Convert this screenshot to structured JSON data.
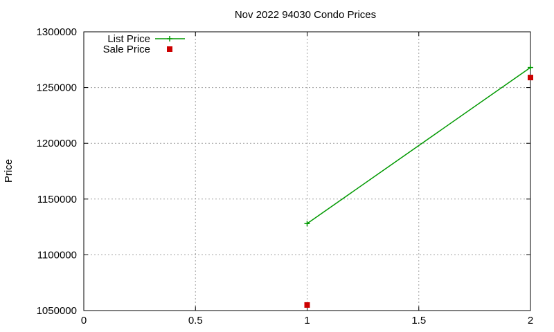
{
  "chart_data": {
    "type": "line",
    "title": "Nov 2022 94030 Condo Prices",
    "xlabel": "",
    "ylabel": "Price",
    "xlim": [
      0,
      2
    ],
    "ylim": [
      1050000,
      1300000
    ],
    "xticks": [
      0,
      0.5,
      1,
      1.5,
      2
    ],
    "xtick_labels": [
      "0",
      "0.5",
      "1",
      "1.5",
      "2"
    ],
    "yticks": [
      1050000,
      1100000,
      1150000,
      1200000,
      1250000,
      1300000
    ],
    "ytick_labels": [
      "1050000",
      "1100000",
      "1150000",
      "1200000",
      "1250000",
      "1300000"
    ],
    "grid": true,
    "legend_position": "top-left",
    "series": [
      {
        "name": "List Price",
        "style": "line+plus",
        "color": "#009900",
        "points": [
          {
            "x": 1,
            "y": 1128000
          },
          {
            "x": 2,
            "y": 1268000
          }
        ]
      },
      {
        "name": "Sale Price",
        "style": "square",
        "color": "#cc0000",
        "points": [
          {
            "x": 1,
            "y": 1055000
          },
          {
            "x": 2,
            "y": 1259000
          }
        ]
      }
    ]
  }
}
